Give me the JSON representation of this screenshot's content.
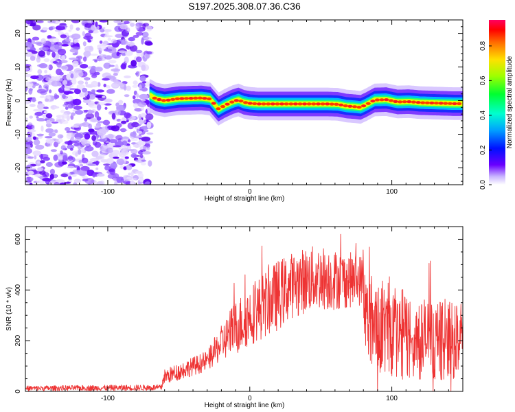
{
  "title": "S197.2025.308.07.36.C36",
  "chart_data": [
    {
      "type": "heatmap",
      "xlabel": "Height of straight line (km)",
      "ylabel": "Frequency (Hz)",
      "xlim": [
        -158,
        150
      ],
      "ylim": [
        -25,
        24
      ],
      "xticks": [
        -100,
        0,
        100
      ],
      "yticks": [
        -20,
        -10,
        0,
        10,
        20
      ],
      "noise_region_x": [
        -158,
        -70
      ],
      "ridge": {
        "x": [
          -70,
          -66,
          -60,
          -50,
          -42,
          -34,
          -28,
          -24,
          -22,
          -18,
          -12,
          -8,
          -4,
          0,
          6,
          20,
          40,
          55,
          62,
          68,
          74,
          78,
          82,
          88,
          96,
          104,
          112,
          120,
          128,
          136,
          144,
          150
        ],
        "hz": [
          1.5,
          0.5,
          0.0,
          0.6,
          0.7,
          0.8,
          0.5,
          -1.5,
          -2.5,
          -1.5,
          -0.3,
          0.2,
          -0.5,
          -0.8,
          -1.0,
          -1.0,
          -1.0,
          -1.0,
          -1.1,
          -1.6,
          -1.8,
          -2.0,
          -1.2,
          0.2,
          0.3,
          -0.4,
          -0.3,
          -0.6,
          -0.7,
          -0.8,
          -0.9,
          -0.9
        ]
      },
      "colorbar": {
        "label": "Normalized spectral amplitude",
        "ticks": [
          "0.0",
          "0.2",
          "0.4",
          "0.6",
          "0.8"
        ],
        "range": [
          0,
          0.95
        ]
      }
    },
    {
      "type": "line",
      "xlabel": "Height of straight line (km)",
      "ylabel": "SNR (10 * v/v)",
      "xlim": [
        -158,
        150
      ],
      "ylim": [
        0,
        650
      ],
      "xticks": [
        -100,
        0,
        100
      ],
      "yticks": [
        0,
        200,
        400,
        600
      ],
      "color": "#ee3333",
      "envelope": {
        "x": [
          -158,
          -62,
          -61,
          -30,
          -20,
          -10,
          0,
          10,
          20,
          30,
          40,
          50,
          60,
          70,
          80,
          81,
          90,
          100,
          110,
          120,
          130,
          140,
          150
        ],
        "base": [
          12,
          15,
          55,
          120,
          190,
          250,
          300,
          340,
          380,
          420,
          440,
          450,
          440,
          440,
          440,
          300,
          260,
          240,
          220,
          210,
          200,
          200,
          200
        ],
        "amp": [
          10,
          12,
          30,
          40,
          70,
          110,
          120,
          130,
          140,
          130,
          130,
          130,
          120,
          110,
          100,
          190,
          190,
          190,
          180,
          170,
          160,
          150,
          150
        ]
      }
    }
  ]
}
